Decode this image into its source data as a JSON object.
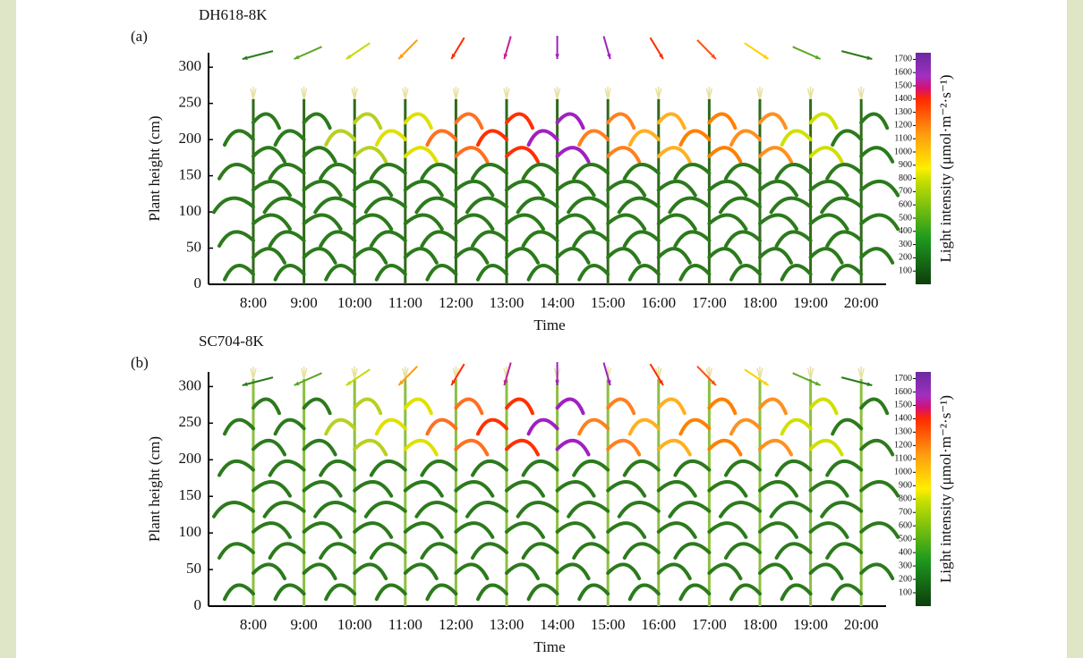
{
  "chart_data": [
    {
      "type": "plant",
      "panel_label": "(a)",
      "title": "DH618-8K",
      "categories": [
        "8:00",
        "9:00",
        "10:00",
        "11:00",
        "12:00",
        "13:00",
        "14:00",
        "15:00",
        "16:00",
        "17:00",
        "18:00",
        "19:00",
        "20:00"
      ],
      "xlabel": "Time",
      "ylabel": "Plant height (cm)",
      "ylim": [
        0,
        320
      ],
      "yticks": [
        0,
        50,
        100,
        150,
        200,
        250,
        300
      ],
      "colorbar_label": "Light intensity (μmol·m⁻²·s⁻¹)",
      "colorbar_lim": [
        0,
        1750
      ],
      "colorbar_ticks": [
        100,
        200,
        300,
        400,
        500,
        600,
        700,
        800,
        900,
        1000,
        1100,
        1200,
        1300,
        1400,
        1500,
        1600,
        1700
      ]
    },
    {
      "type": "plant",
      "panel_label": "(b)",
      "title": "SC704-8K",
      "categories": [
        "8:00",
        "9:00",
        "10:00",
        "11:00",
        "12:00",
        "13:00",
        "14:00",
        "15:00",
        "16:00",
        "17:00",
        "18:00",
        "19:00",
        "20:00"
      ],
      "xlabel": "Time",
      "ylabel": "Plant height (cm)",
      "ylim": [
        0,
        320
      ],
      "yticks": [
        0,
        50,
        100,
        150,
        200,
        250,
        300
      ],
      "colorbar_label": "Light intensity (μmol·m⁻²·s⁻¹)",
      "colorbar_lim": [
        0,
        1750
      ],
      "colorbar_ticks": [
        100,
        200,
        300,
        400,
        500,
        600,
        700,
        800,
        900,
        1000,
        1100,
        1200,
        1300,
        1400,
        1500,
        1600,
        1700
      ]
    }
  ]
}
